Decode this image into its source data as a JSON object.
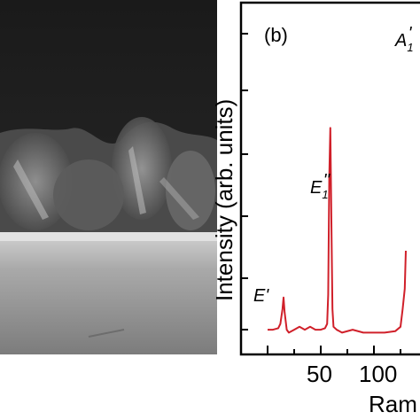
{
  "panel_b": {
    "label": "(b)",
    "ylabel": "Intensity (arb. units)",
    "xlabel_visible": "Ram",
    "x_tick_labels": [
      "50",
      "100"
    ],
    "peaks": [
      {
        "symbol": "E",
        "prime": "'",
        "sub": ""
      },
      {
        "symbol": "E",
        "prime": "''",
        "sub": "1"
      },
      {
        "symbol": "A",
        "prime": "'",
        "sub": "1"
      }
    ]
  },
  "chart_data": {
    "type": "line",
    "title": "",
    "xlabel": "Ram",
    "ylabel": "Intensity (arb. units)",
    "xlim": [
      0,
      135
    ],
    "series": [
      {
        "color": "#d0202a",
        "x": [
          0,
          5,
          10,
          12,
          14,
          15,
          16,
          18,
          20,
          25,
          30,
          35,
          40,
          45,
          50,
          54,
          56,
          57,
          58,
          59,
          60,
          61,
          62,
          65,
          70,
          80,
          90,
          100,
          110,
          120,
          125,
          127,
          129,
          130
        ],
        "y": [
          0.03,
          0.03,
          0.035,
          0.05,
          0.1,
          0.14,
          0.09,
          0.03,
          0.02,
          0.03,
          0.04,
          0.03,
          0.04,
          0.03,
          0.03,
          0.035,
          0.05,
          0.15,
          0.55,
          0.72,
          0.4,
          0.1,
          0.04,
          0.03,
          0.02,
          0.03,
          0.02,
          0.02,
          0.02,
          0.025,
          0.04,
          0.1,
          0.17,
          0.3
        ]
      }
    ]
  },
  "colors": {
    "spectrum": "#d0202a",
    "axis": "#000000"
  }
}
